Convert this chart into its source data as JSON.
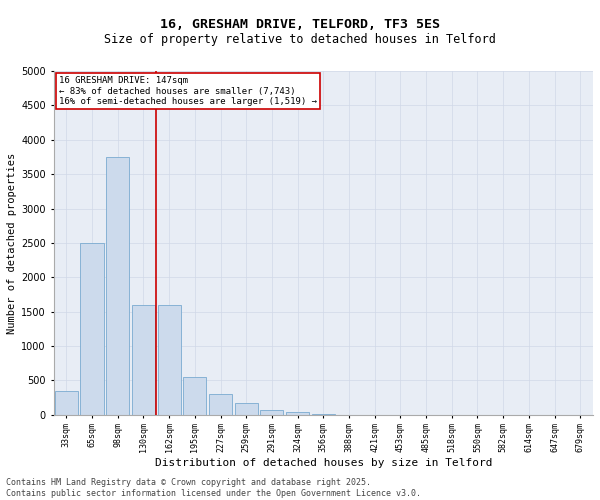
{
  "title_line1": "16, GRESHAM DRIVE, TELFORD, TF3 5ES",
  "title_line2": "Size of property relative to detached houses in Telford",
  "xlabel": "Distribution of detached houses by size in Telford",
  "ylabel": "Number of detached properties",
  "categories": [
    "33sqm",
    "65sqm",
    "98sqm",
    "130sqm",
    "162sqm",
    "195sqm",
    "227sqm",
    "259sqm",
    "291sqm",
    "324sqm",
    "356sqm",
    "388sqm",
    "421sqm",
    "453sqm",
    "485sqm",
    "518sqm",
    "550sqm",
    "582sqm",
    "614sqm",
    "647sqm",
    "679sqm"
  ],
  "values": [
    350,
    2500,
    3750,
    1600,
    1600,
    550,
    300,
    175,
    75,
    40,
    15,
    0,
    0,
    0,
    0,
    0,
    0,
    0,
    0,
    0,
    0
  ],
  "bar_color": "#ccdaec",
  "bar_edge_color": "#7aaad0",
  "vline_x_index": 3.5,
  "vline_color": "#cc0000",
  "annotation_text": "16 GRESHAM DRIVE: 147sqm\n← 83% of detached houses are smaller (7,743)\n16% of semi-detached houses are larger (1,519) →",
  "annotation_box_color": "#cc0000",
  "annotation_bg": "#ffffff",
  "ylim": [
    0,
    5000
  ],
  "yticks": [
    0,
    500,
    1000,
    1500,
    2000,
    2500,
    3000,
    3500,
    4000,
    4500,
    5000
  ],
  "grid_color": "#d0d8e8",
  "bg_color": "#e8edf5",
  "footer_line1": "Contains HM Land Registry data © Crown copyright and database right 2025.",
  "footer_line2": "Contains public sector information licensed under the Open Government Licence v3.0.",
  "title_fontsize": 9.5,
  "subtitle_fontsize": 8.5,
  "annotation_fontsize": 6.5,
  "footer_fontsize": 6,
  "ylabel_fontsize": 7.5,
  "xlabel_fontsize": 8,
  "ytick_fontsize": 7,
  "xtick_fontsize": 6
}
